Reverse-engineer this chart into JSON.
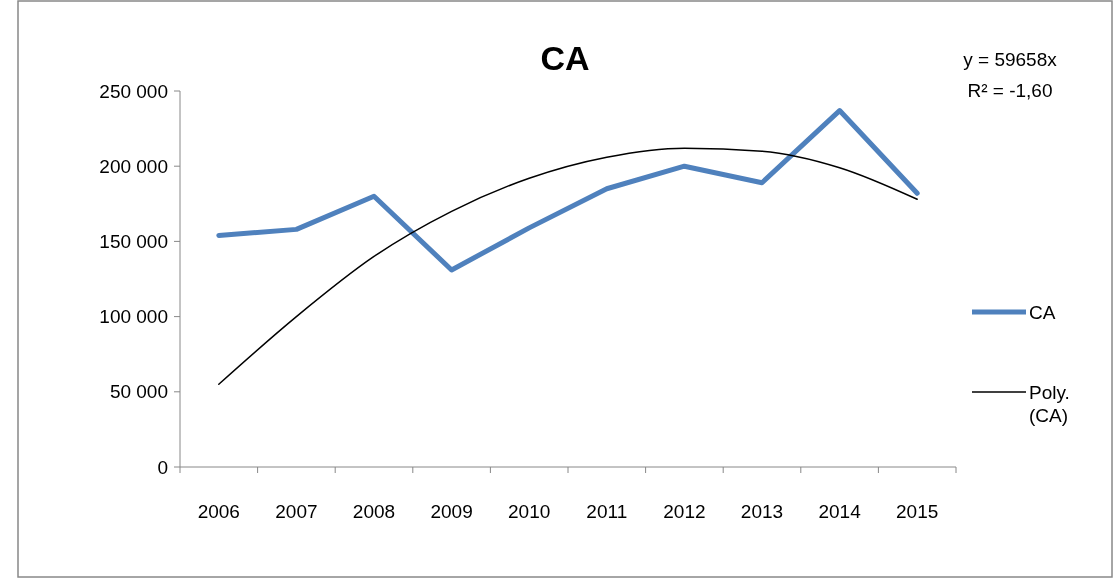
{
  "chart_data": {
    "type": "line",
    "title": "CA",
    "categories": [
      "2006",
      "2007",
      "2008",
      "2009",
      "2010",
      "2011",
      "2012",
      "2013",
      "2014",
      "2015"
    ],
    "series": [
      {
        "name": "CA",
        "color": "#4f81bd",
        "values": [
          154000,
          158000,
          180000,
          131000,
          159000,
          185000,
          200000,
          189000,
          237000,
          182000
        ]
      },
      {
        "name": "Poly. (CA)",
        "color": "#000000",
        "values": [
          55000,
          100000,
          140000,
          170000,
          192000,
          206000,
          212000,
          210000,
          199000,
          178000
        ]
      }
    ],
    "ylim": [
      0,
      250000
    ],
    "yticks": [
      {
        "value": 0,
        "label": "0"
      },
      {
        "value": 50000,
        "label": "50 000"
      },
      {
        "value": 100000,
        "label": "100 000"
      },
      {
        "value": 150000,
        "label": "150 000"
      },
      {
        "value": 200000,
        "label": "200 000"
      },
      {
        "value": 250000,
        "label": "250 000"
      }
    ],
    "annotations": [
      "y = 59658x",
      "R² = -1,60"
    ],
    "legend": "right",
    "grid": false,
    "marker": "none"
  }
}
